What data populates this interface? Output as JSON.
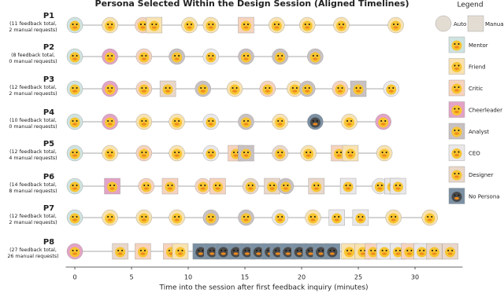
{
  "chart_data": {
    "type": "timeline",
    "title": "Persona Selected Within the Design Session (Aligned Timelines)",
    "x_label": "Time into the session after first feedback inquiry (minutes)",
    "xlim": [
      -0.8,
      34.2
    ],
    "xticks": [
      0,
      5,
      10,
      15,
      20,
      25,
      30
    ],
    "legend": {
      "title": "Legend",
      "auto": "Auto",
      "manual": "Manual",
      "personas": [
        {
          "name": "Mentor",
          "color": "#cfe3e0"
        },
        {
          "name": "Friend",
          "color": "#f8e2b0"
        },
        {
          "name": "Critic",
          "color": "#f6d3bd"
        },
        {
          "name": "Cheerleader",
          "color": "#e3a3c6"
        },
        {
          "name": "Analyst",
          "color": "#c9c1c1"
        },
        {
          "name": "CEO",
          "color": "#e9e7e7"
        },
        {
          "name": "Designer",
          "color": "#e9d7c9"
        },
        {
          "name": "No Persona",
          "color": "#7b90a3"
        }
      ]
    },
    "rows": [
      {
        "label": "P1",
        "note": [
          "(11 feedback total,",
          "2 manual requests)"
        ],
        "events": [
          {
            "t": 0,
            "persona": "Mentor",
            "manual": false
          },
          {
            "t": 3.1,
            "persona": "Friend",
            "manual": false
          },
          {
            "t": 6.0,
            "persona": "Critic",
            "manual": false
          },
          {
            "t": 7.0,
            "persona": "Friend",
            "manual": true
          },
          {
            "t": 10.1,
            "persona": "Friend",
            "manual": false
          },
          {
            "t": 12.0,
            "persona": "Friend",
            "manual": false
          },
          {
            "t": 15.1,
            "persona": "Critic",
            "manual": true
          },
          {
            "t": 17.8,
            "persona": "Friend",
            "manual": false
          },
          {
            "t": 20.5,
            "persona": "Friend",
            "manual": false
          },
          {
            "t": 23.5,
            "persona": "Friend",
            "manual": false
          },
          {
            "t": 28.3,
            "persona": "Friend",
            "manual": false
          }
        ]
      },
      {
        "label": "P2",
        "note": [
          "(8 feedback total,",
          "0 manual requests)"
        ],
        "events": [
          {
            "t": 0,
            "persona": "Mentor",
            "manual": false
          },
          {
            "t": 3.1,
            "persona": "Cheerleader",
            "manual": false
          },
          {
            "t": 6.1,
            "persona": "Critic",
            "manual": false
          },
          {
            "t": 9.0,
            "persona": "Analyst",
            "manual": false
          },
          {
            "t": 12.0,
            "persona": "CEO",
            "manual": false
          },
          {
            "t": 15.1,
            "persona": "Analyst",
            "manual": false
          },
          {
            "t": 18.1,
            "persona": "Analyst",
            "manual": false
          },
          {
            "t": 21.2,
            "persona": "Analyst",
            "manual": false
          }
        ]
      },
      {
        "label": "P3",
        "note": [
          "(12 feedback total,",
          "2 manual requests)"
        ],
        "events": [
          {
            "t": 0,
            "persona": "Mentor",
            "manual": false
          },
          {
            "t": 3.1,
            "persona": "Cheerleader",
            "manual": false
          },
          {
            "t": 6.1,
            "persona": "Critic",
            "manual": false
          },
          {
            "t": 8.2,
            "persona": "Designer",
            "manual": true
          },
          {
            "t": 11.3,
            "persona": "Analyst",
            "manual": false
          },
          {
            "t": 14.1,
            "persona": "Friend",
            "manual": false
          },
          {
            "t": 17.0,
            "persona": "Critic",
            "manual": false
          },
          {
            "t": 19.4,
            "persona": "Friend",
            "manual": false
          },
          {
            "t": 20.5,
            "persona": "Analyst",
            "manual": false
          },
          {
            "t": 23.4,
            "persona": "Critic",
            "manual": false
          },
          {
            "t": 25.0,
            "persona": "Analyst",
            "manual": true
          },
          {
            "t": 27.9,
            "persona": "CEO",
            "manual": false
          }
        ]
      },
      {
        "label": "P4",
        "note": [
          "(10 feedback total,",
          "0 manual requests)"
        ],
        "events": [
          {
            "t": 0,
            "persona": "Mentor",
            "manual": false
          },
          {
            "t": 3.1,
            "persona": "Cheerleader",
            "manual": false
          },
          {
            "t": 6.1,
            "persona": "Friend",
            "manual": false
          },
          {
            "t": 9.0,
            "persona": "Friend",
            "manual": false
          },
          {
            "t": 12.0,
            "persona": "CEO",
            "manual": false
          },
          {
            "t": 15.1,
            "persona": "Analyst",
            "manual": false
          },
          {
            "t": 18.1,
            "persona": "Friend",
            "manual": false
          },
          {
            "t": 21.2,
            "persona": "No Persona",
            "manual": false
          },
          {
            "t": 24.2,
            "persona": "Friend",
            "manual": false
          },
          {
            "t": 27.2,
            "persona": "Cheerleader",
            "manual": false
          }
        ]
      },
      {
        "label": "P5",
        "note": [
          "(12 feedback total,",
          "4 manual requests)"
        ],
        "events": [
          {
            "t": 0,
            "persona": "Mentor",
            "manual": false
          },
          {
            "t": 3.1,
            "persona": "Friend",
            "manual": false
          },
          {
            "t": 6.1,
            "persona": "Critic",
            "manual": false
          },
          {
            "t": 9.0,
            "persona": "Friend",
            "manual": false
          },
          {
            "t": 12.0,
            "persona": "CEO",
            "manual": false
          },
          {
            "t": 14.2,
            "persona": "Critic",
            "manual": true
          },
          {
            "t": 15.1,
            "persona": "Analyst",
            "manual": true
          },
          {
            "t": 18.1,
            "persona": "Designer",
            "manual": false
          },
          {
            "t": 20.6,
            "persona": "Friend",
            "manual": false
          },
          {
            "t": 23.3,
            "persona": "Critic",
            "manual": true
          },
          {
            "t": 24.3,
            "persona": "Friend",
            "manual": true
          },
          {
            "t": 27.3,
            "persona": "Friend",
            "manual": false
          }
        ]
      },
      {
        "label": "P6",
        "note": [
          "(14 feedback total,",
          "8 manual requests)"
        ],
        "events": [
          {
            "t": 0,
            "persona": "Mentor",
            "manual": false
          },
          {
            "t": 3.3,
            "persona": "Cheerleader",
            "manual": true
          },
          {
            "t": 6.3,
            "persona": "Critic",
            "manual": false
          },
          {
            "t": 8.4,
            "persona": "Critic",
            "manual": true
          },
          {
            "t": 11.3,
            "persona": "Critic",
            "manual": false
          },
          {
            "t": 12.6,
            "persona": "Critic",
            "manual": true
          },
          {
            "t": 15.5,
            "persona": "Designer",
            "manual": false
          },
          {
            "t": 17.4,
            "persona": "Designer",
            "manual": true
          },
          {
            "t": 18.6,
            "persona": "Analyst",
            "manual": false
          },
          {
            "t": 21.3,
            "persona": "Designer",
            "manual": true
          },
          {
            "t": 24.1,
            "persona": "CEO",
            "manual": true
          },
          {
            "t": 26.9,
            "persona": "CEO",
            "manual": false
          },
          {
            "t": 28.0,
            "persona": "CEO",
            "manual": true
          },
          {
            "t": 28.5,
            "persona": "CEO",
            "manual": true
          }
        ]
      },
      {
        "label": "P7",
        "note": [
          "(12 feedback total,",
          "2 manual requests)"
        ],
        "events": [
          {
            "t": 0,
            "persona": "Mentor",
            "manual": false
          },
          {
            "t": 3.1,
            "persona": "Friend",
            "manual": false
          },
          {
            "t": 6.1,
            "persona": "Friend",
            "manual": false
          },
          {
            "t": 9.0,
            "persona": "Friend",
            "manual": false
          },
          {
            "t": 12.0,
            "persona": "Analyst",
            "manual": false
          },
          {
            "t": 15.1,
            "persona": "Analyst",
            "manual": false
          },
          {
            "t": 18.1,
            "persona": "CEO",
            "manual": false
          },
          {
            "t": 21.0,
            "persona": "Friend",
            "manual": false
          },
          {
            "t": 23.1,
            "persona": "CEO",
            "manual": true
          },
          {
            "t": 25.2,
            "persona": "CEO",
            "manual": true
          },
          {
            "t": 28.1,
            "persona": "Friend",
            "manual": false
          },
          {
            "t": 31.3,
            "persona": "Friend",
            "manual": false
          }
        ]
      },
      {
        "label": "P8",
        "note": [
          "(27 feedback total,",
          "26 manual requests)"
        ],
        "events": [
          {
            "t": 0,
            "persona": "Cheerleader",
            "manual": false
          },
          {
            "t": 4.0,
            "persona": "Designer",
            "manual": true
          },
          {
            "t": 6.0,
            "persona": "Critic",
            "manual": true
          },
          {
            "t": 8.5,
            "persona": "Critic",
            "manual": true
          },
          {
            "t": 9.3,
            "persona": "Friend",
            "manual": true
          },
          {
            "t": 11.1,
            "persona": "No Persona",
            "manual": true
          },
          {
            "t": 12.1,
            "persona": "No Persona",
            "manual": true
          },
          {
            "t": 13.1,
            "persona": "No Persona",
            "manual": true
          },
          {
            "t": 14.2,
            "persona": "No Persona",
            "manual": true
          },
          {
            "t": 15.2,
            "persona": "No Persona",
            "manual": true
          },
          {
            "t": 16.2,
            "persona": "No Persona",
            "manual": true
          },
          {
            "t": 17.2,
            "persona": "No Persona",
            "manual": true
          },
          {
            "t": 17.9,
            "persona": "No Persona",
            "manual": true
          },
          {
            "t": 18.8,
            "persona": "No Persona",
            "manual": true
          },
          {
            "t": 19.8,
            "persona": "No Persona",
            "manual": true
          },
          {
            "t": 20.8,
            "persona": "No Persona",
            "manual": true
          },
          {
            "t": 21.7,
            "persona": "No Persona",
            "manual": true
          },
          {
            "t": 22.7,
            "persona": "No Persona",
            "manual": true
          },
          {
            "t": 24.2,
            "persona": "Friend",
            "manual": true
          },
          {
            "t": 25.4,
            "persona": "Friend",
            "manual": true
          },
          {
            "t": 26.3,
            "persona": "Critic",
            "manual": true
          },
          {
            "t": 27.3,
            "persona": "CEO",
            "manual": true
          },
          {
            "t": 28.5,
            "persona": "CEO",
            "manual": true
          },
          {
            "t": 29.5,
            "persona": "Critic",
            "manual": true
          },
          {
            "t": 30.6,
            "persona": "CEO",
            "manual": true
          },
          {
            "t": 31.7,
            "persona": "Designer",
            "manual": true
          },
          {
            "t": 33.1,
            "persona": "Designer",
            "manual": true
          }
        ]
      }
    ]
  }
}
